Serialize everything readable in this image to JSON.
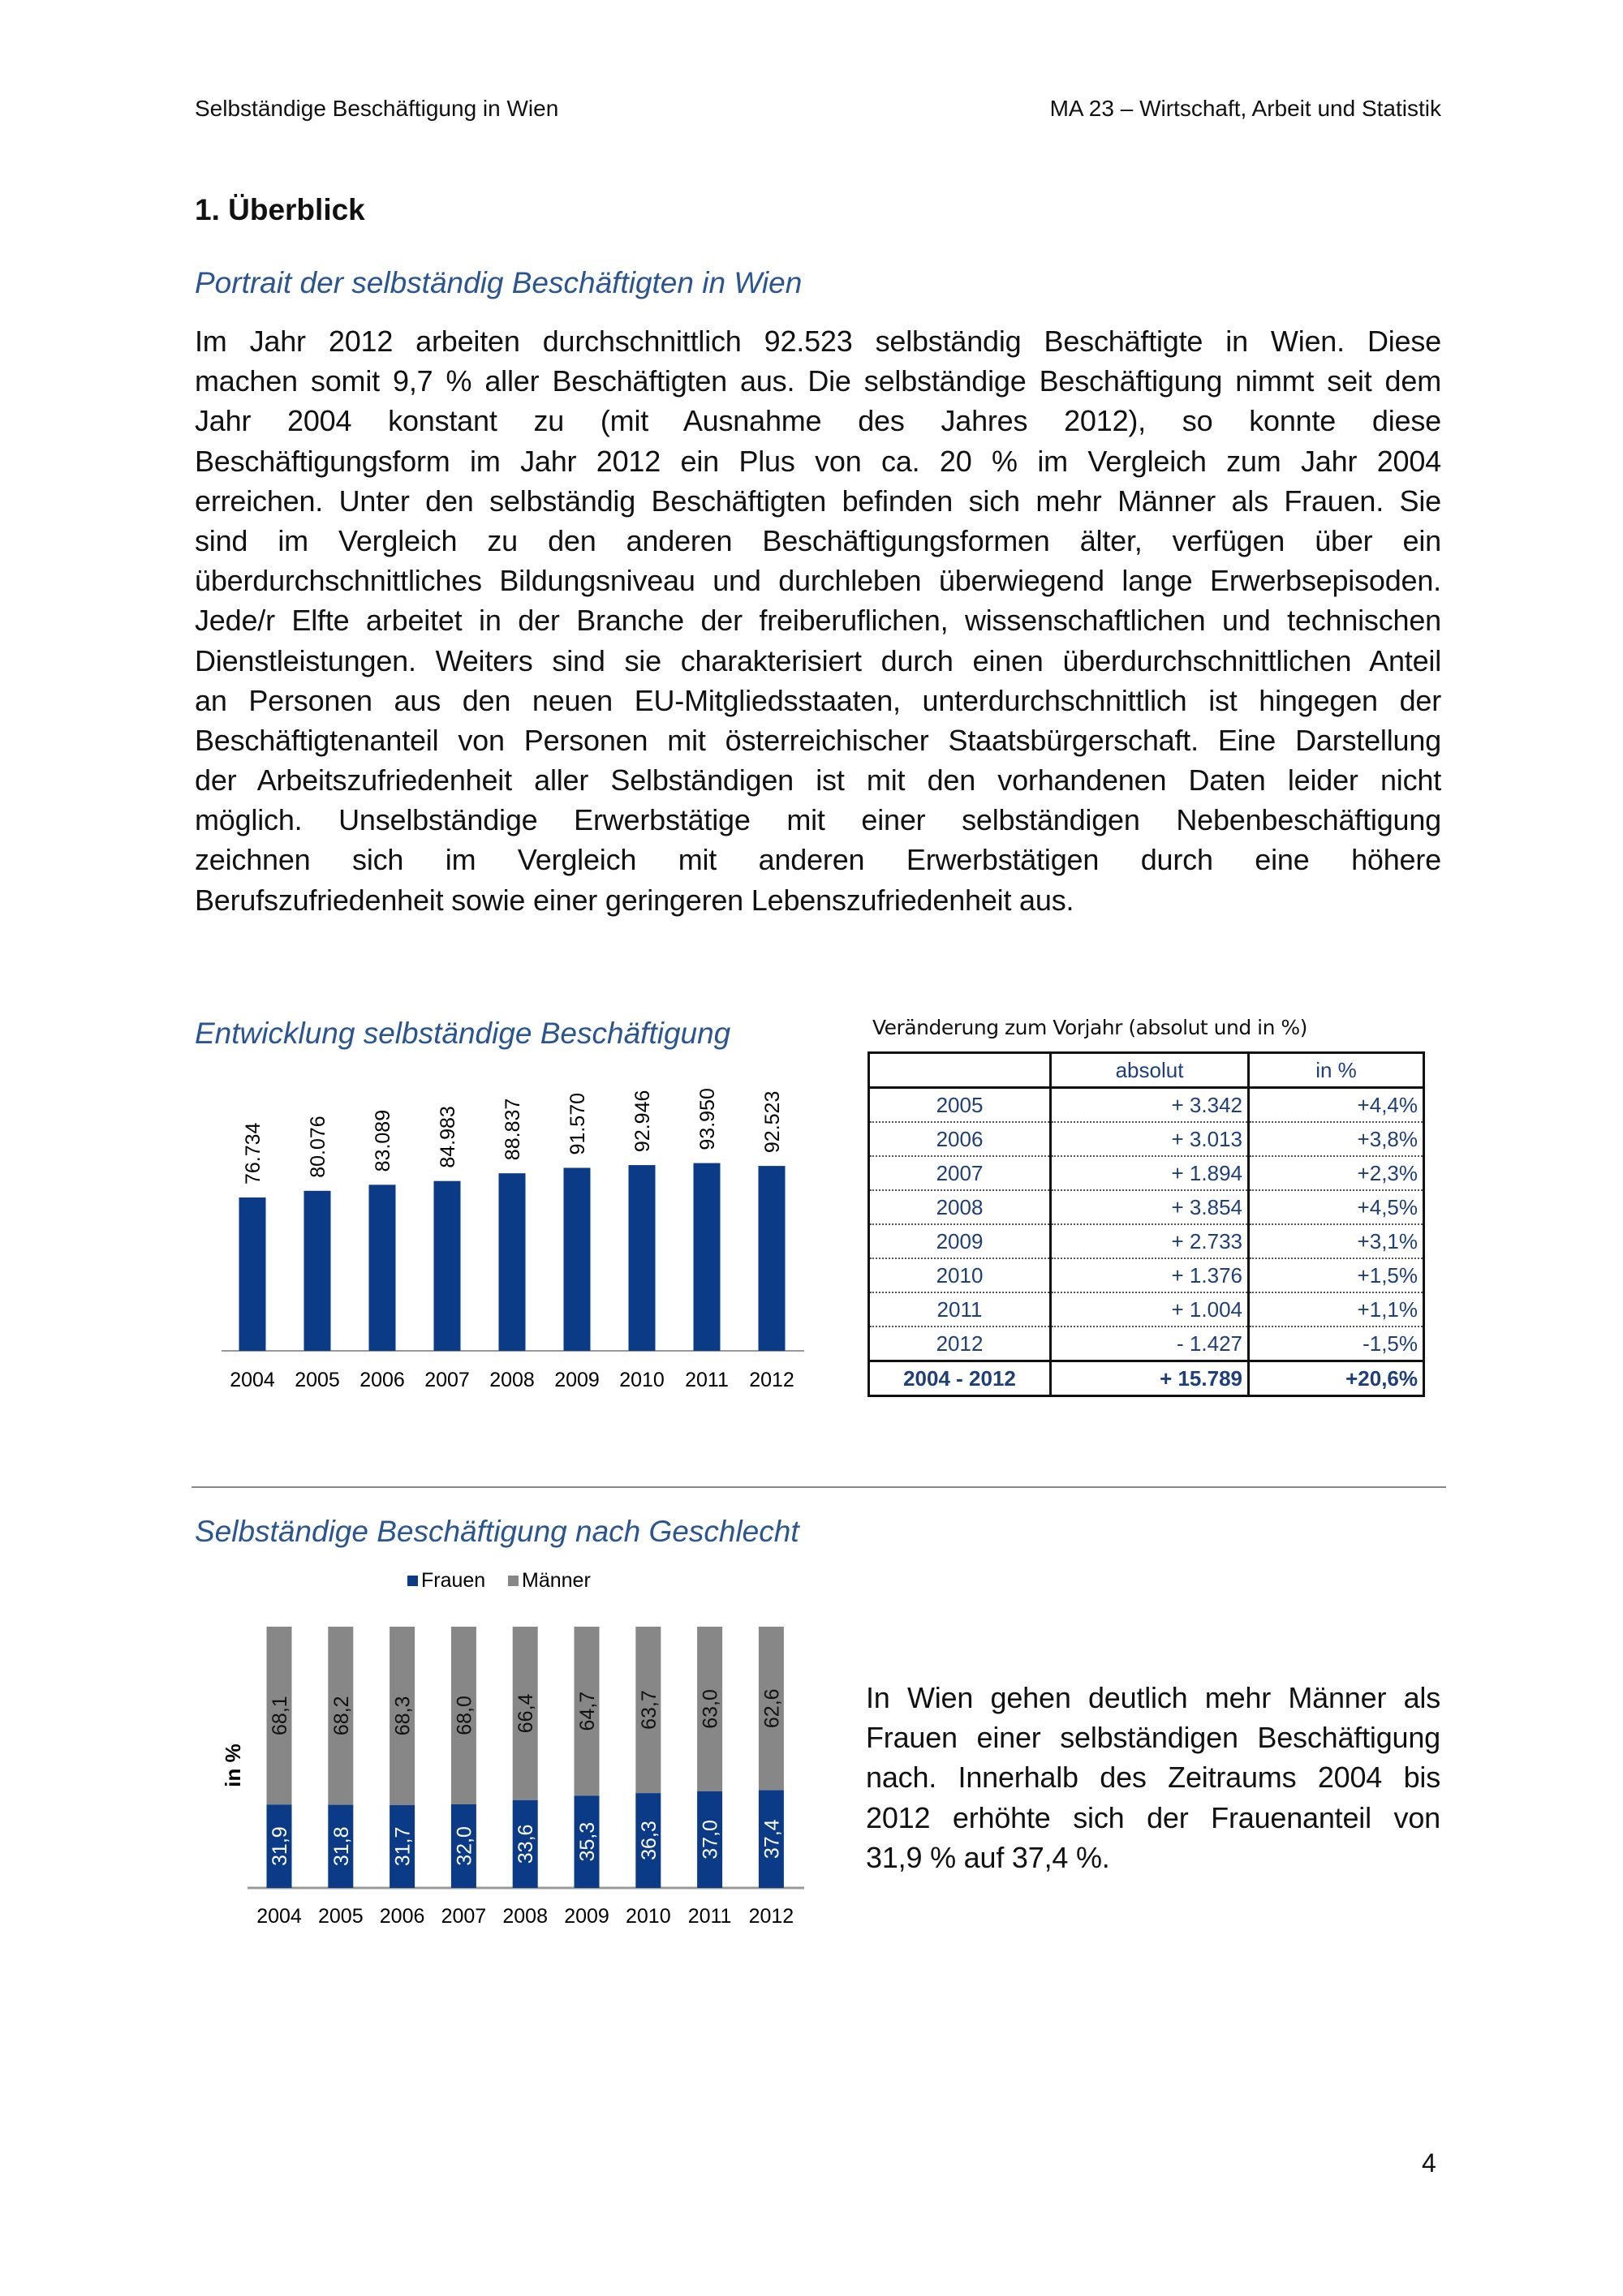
{
  "header": {
    "left": "Selbständige Beschäftigung in Wien",
    "right": "MA 23 – Wirtschaft, Arbeit und Statistik"
  },
  "section_title": "1.  Überblick",
  "subtitle": "Portrait der selbständig Beschäftigten in Wien",
  "paragraph_lines": [
    "Im Jahr 2012 arbeiten durchschnittlich 92.523 selbständig Beschäftigte in Wien. Diese",
    "machen somit 9,7 % aller Beschäftigten aus. Die selbständige Beschäftigung nimmt seit dem",
    "Jahr 2004 konstant zu (mit Ausnahme des Jahres 2012), so konnte diese",
    "Beschäftigungsform im Jahr 2012 ein Plus von ca. 20 % im Vergleich zum Jahr 2004",
    "erreichen. Unter den selbständig Beschäftigten befinden sich mehr Männer als Frauen. Sie",
    "sind im Vergleich zu den anderen Beschäftigungsformen älter, verfügen über ein",
    "überdurchschnittliches Bildungsniveau und durchleben überwiegend lange Erwerbsepisoden.",
    "Jede/r Elfte arbeitet in der Branche der freiberuflichen, wissenschaftlichen und technischen",
    "Dienstleistungen. Weiters sind sie charakterisiert durch einen überdurchschnittlichen Anteil",
    "an Personen aus den neuen EU-Mitgliedsstaaten, unterdurchschnittlich ist hingegen der",
    "Beschäftigtenanteil von Personen mit österreichischer Staatsbürgerschaft. Eine Darstellung",
    "der Arbeitszufriedenheit aller Selbständigen ist mit den vorhandenen Daten leider nicht",
    "möglich. Unselbständige Erwerbstätige mit einer selbständigen Nebenbeschäftigung",
    "zeichnen sich im Vergleich mit anderen Erwerbstätigen durch eine höhere",
    "Berufszufriedenheit sowie einer geringeren Lebenszufriedenheit aus."
  ],
  "side_text_lines": [
    "In Wien gehen deutlich mehr Männer als",
    "Frauen einer selbständigen Beschäftigung",
    "nach. Innerhalb des Zeitraums 2004 bis",
    "2012 erhöhte sich der Frauenanteil von",
    "31,9 % auf 37,4 %."
  ],
  "page_number": "4",
  "colors": {
    "blue": "#0b3b87",
    "gray": "#878787",
    "title_blue": "#2a5590"
  },
  "chart_data": [
    {
      "type": "bar",
      "title": "Entwicklung selbständige Beschäftigung",
      "categories": [
        "2004",
        "2005",
        "2006",
        "2007",
        "2008",
        "2009",
        "2010",
        "2011",
        "2012"
      ],
      "values": [
        76734,
        80076,
        83089,
        84983,
        88837,
        91570,
        92946,
        93950,
        92523
      ],
      "value_labels": [
        "76.734",
        "80.076",
        "83.089",
        "84.983",
        "88.837",
        "91.570",
        "92.946",
        "93.950",
        "92.523"
      ],
      "xlabel": "",
      "ylabel": "",
      "ylim": [
        0,
        100000
      ]
    },
    {
      "type": "table",
      "title": "Veränderung zum Vorjahr (absolut und in %)",
      "columns": [
        "",
        "absolut",
        "in %"
      ],
      "rows": [
        [
          "2005",
          "+ 3.342",
          "+4,4%"
        ],
        [
          "2006",
          "+ 3.013",
          "+3,8%"
        ],
        [
          "2007",
          "+ 1.894",
          "+2,3%"
        ],
        [
          "2008",
          "+ 3.854",
          "+4,5%"
        ],
        [
          "2009",
          "+ 2.733",
          "+3,1%"
        ],
        [
          "2010",
          "+ 1.376",
          "+1,5%"
        ],
        [
          "2011",
          "+ 1.004",
          "+1,1%"
        ],
        [
          "2012",
          "- 1.427",
          "-1,5%"
        ]
      ],
      "total": [
        "2004 - 2012",
        "+ 15.789",
        "+20,6%"
      ]
    },
    {
      "type": "bar",
      "stacked": true,
      "title": "Selbständige Beschäftigung nach Geschlecht",
      "categories": [
        "2004",
        "2005",
        "2006",
        "2007",
        "2008",
        "2009",
        "2010",
        "2011",
        "2012"
      ],
      "series": [
        {
          "name": "Frauen",
          "values": [
            31.9,
            31.8,
            31.7,
            32.0,
            33.6,
            35.3,
            36.3,
            37.0,
            37.4
          ],
          "labels": [
            "31,9",
            "31,8",
            "31,7",
            "32,0",
            "33,6",
            "35,3",
            "36,3",
            "37,0",
            "37,4"
          ]
        },
        {
          "name": "Männer",
          "values": [
            68.1,
            68.2,
            68.3,
            68.0,
            66.4,
            64.7,
            63.7,
            63.0,
            62.6
          ],
          "labels": [
            "68,1",
            "68,2",
            "68,3",
            "68,0",
            "66,4",
            "64,7",
            "63,7",
            "63,0",
            "62,6"
          ]
        }
      ],
      "ylabel": "in %",
      "ylim": [
        0,
        100
      ],
      "legend": "top"
    }
  ]
}
